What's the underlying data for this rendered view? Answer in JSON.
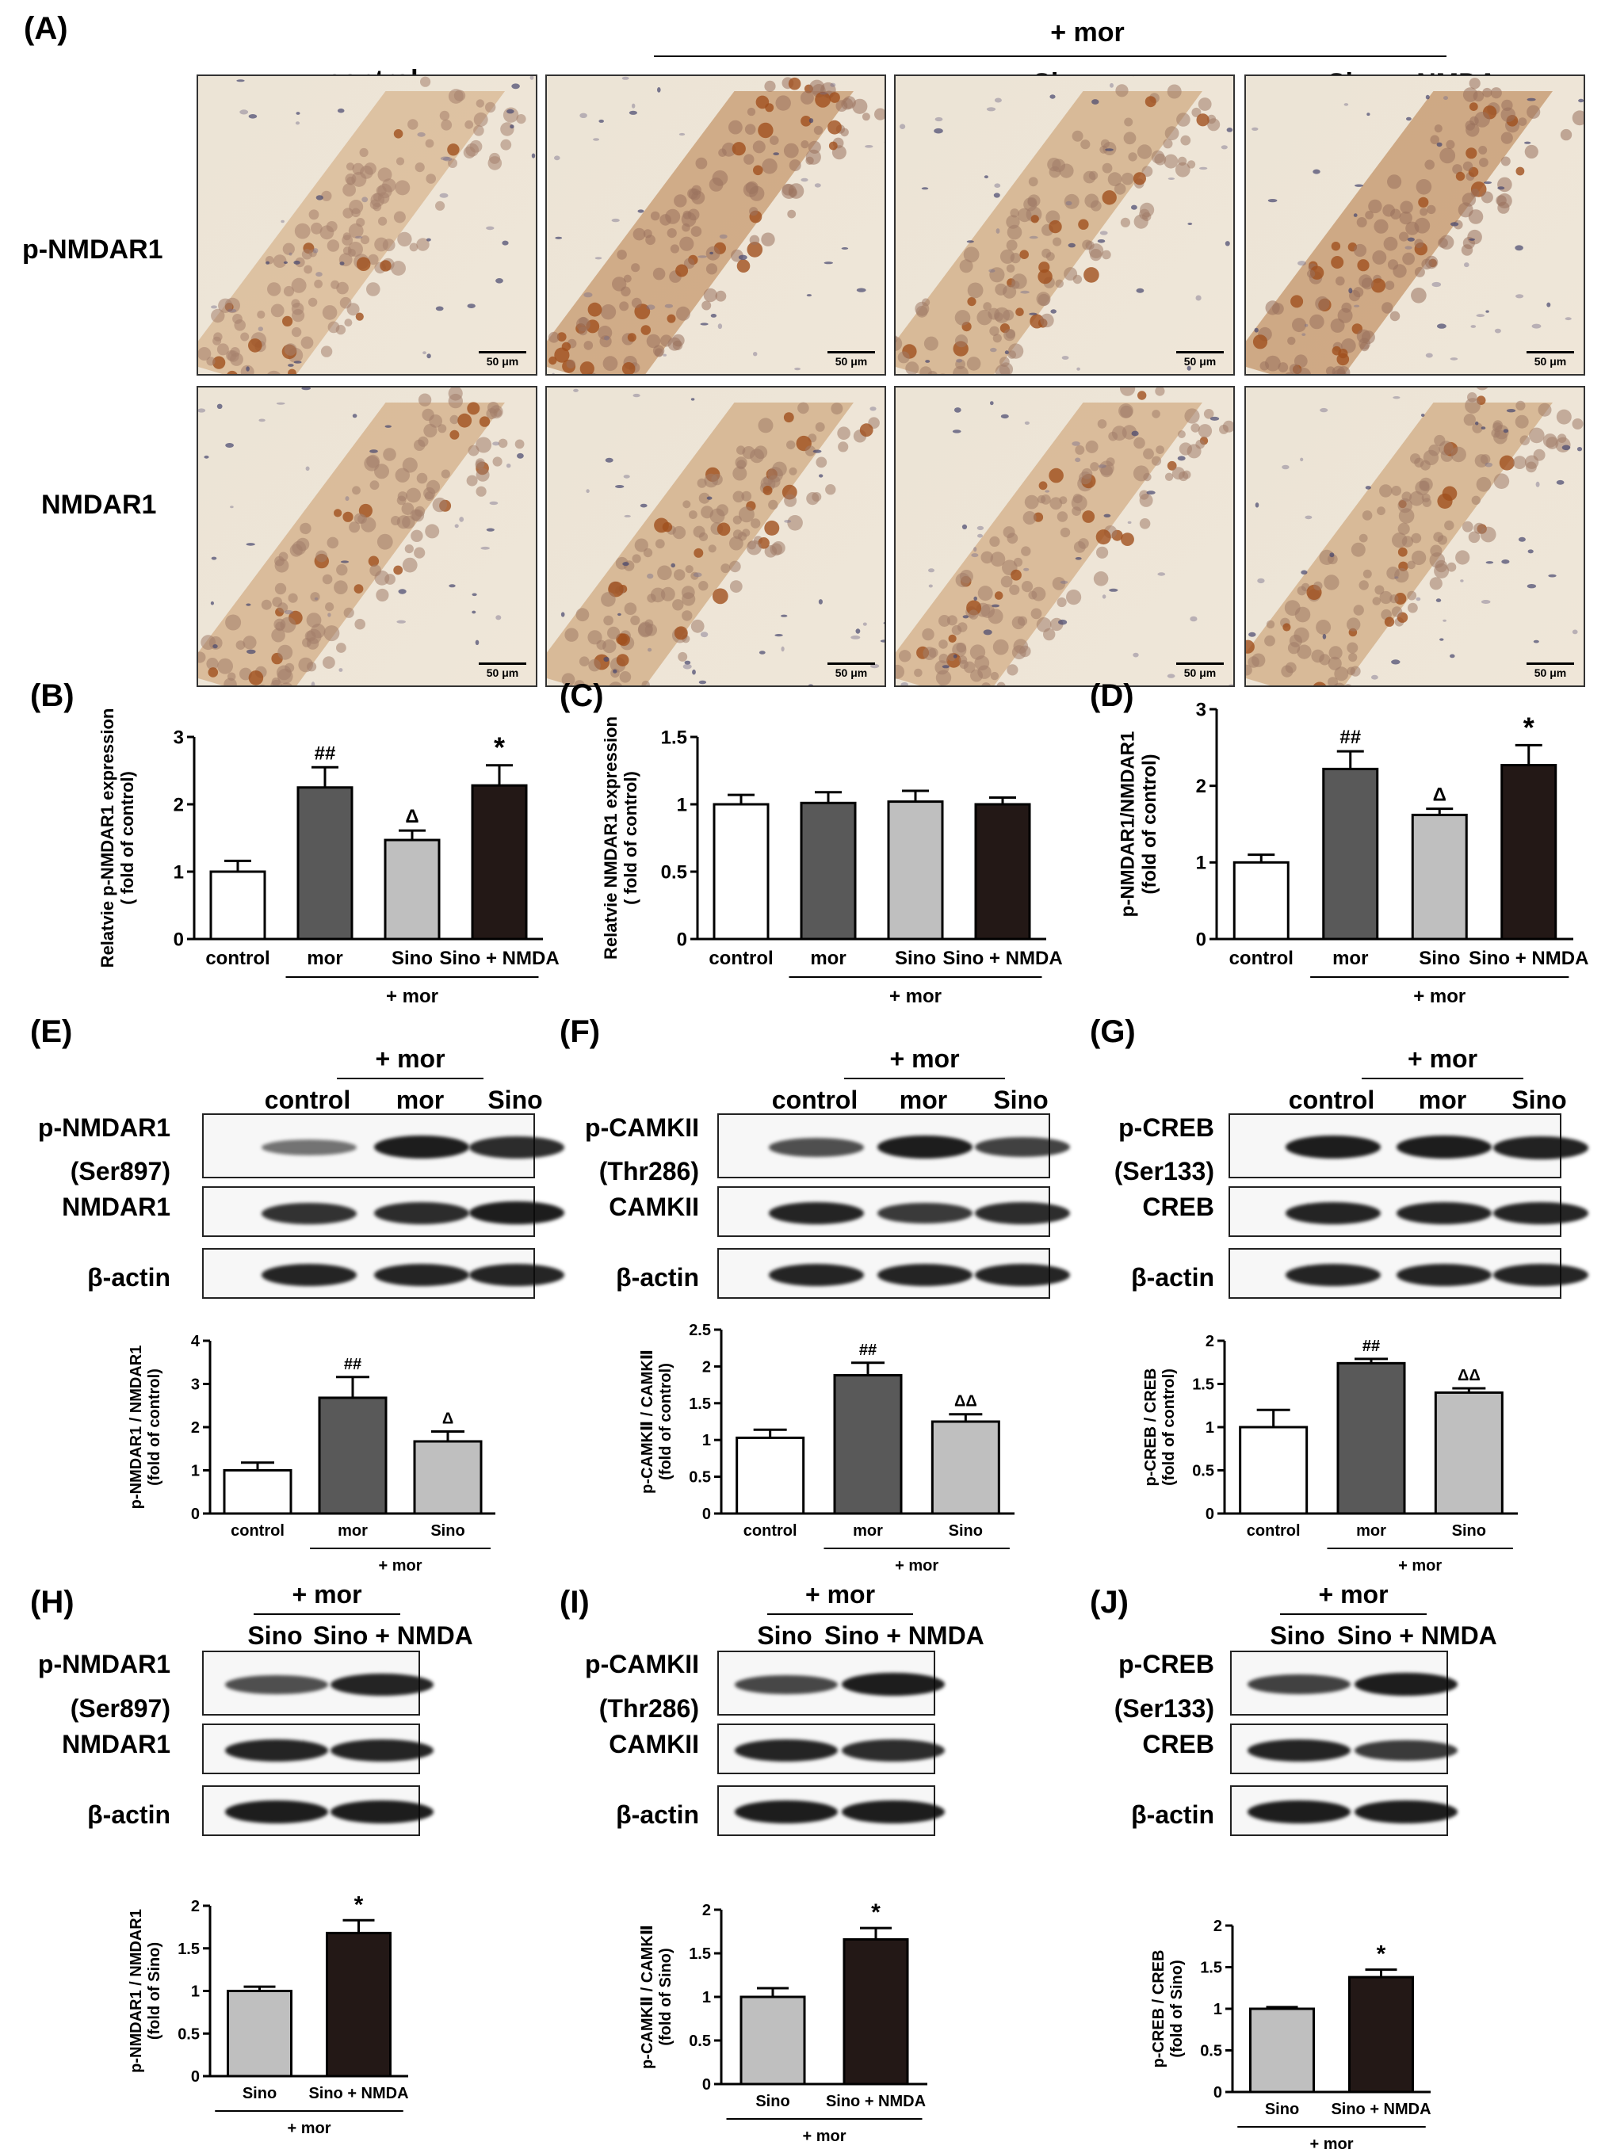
{
  "panel_letters": {
    "A": "(A)",
    "B": "(B)",
    "C": "(C)",
    "D": "(D)",
    "E": "(E)",
    "F": "(F)",
    "G": "(G)",
    "H": "(H)",
    "I": "(I)",
    "J": "(J)"
  },
  "panel_A": {
    "group_label": "+ mor",
    "col_headers": [
      "control",
      "mor",
      "Sino",
      "Sino + NMDA"
    ],
    "row_labels": [
      "p-NMDAR1",
      "NMDAR1"
    ],
    "scale_bar": "50 μm"
  },
  "blots": {
    "E": {
      "lanes": [
        "control",
        "mor",
        "Sino"
      ],
      "group_label": "+ mor",
      "rows": [
        "p-NMDAR1",
        "(Ser897)",
        "NMDAR1",
        "β-actin"
      ]
    },
    "F": {
      "lanes": [
        "control",
        "mor",
        "Sino"
      ],
      "group_label": "+ mor",
      "rows": [
        "p-CAMKII",
        "(Thr286)",
        "CAMKII",
        "β-actin"
      ]
    },
    "G": {
      "lanes": [
        "control",
        "mor",
        "Sino"
      ],
      "group_label": "+ mor",
      "rows": [
        "p-CREB",
        "(Ser133)",
        "CREB",
        "β-actin"
      ]
    },
    "H": {
      "lanes": [
        "Sino",
        "Sino + NMDA"
      ],
      "group_label": "+ mor",
      "rows": [
        "p-NMDAR1",
        "(Ser897)",
        "NMDAR1",
        "β-actin"
      ]
    },
    "I": {
      "lanes": [
        "Sino",
        "Sino + NMDA"
      ],
      "group_label": "+ mor",
      "rows": [
        "p-CAMKII",
        "(Thr286)",
        "CAMKII",
        "β-actin"
      ]
    },
    "J": {
      "lanes": [
        "Sino",
        "Sino + NMDA"
      ],
      "group_label": "+ mor",
      "rows": [
        "p-CREB",
        "(Ser133)",
        "CREB",
        "β-actin"
      ]
    }
  },
  "colors": {
    "control": "#ffffff",
    "mor": "#595959",
    "Sino": "#bfbfbf",
    "Sino + NMDA": "#231816"
  },
  "chart_data": [
    {
      "id": "B",
      "type": "bar",
      "categories": [
        "control",
        "mor",
        "Sino",
        "Sino + NMDA"
      ],
      "values": [
        1.0,
        2.25,
        1.47,
        2.28
      ],
      "errors": [
        0.16,
        0.3,
        0.14,
        0.3
      ],
      "annotations": [
        "",
        "##",
        "Δ",
        "*"
      ],
      "ylabel": "Relatvie p-NMDAR1 expression\n( fold of control)",
      "ylim": [
        0,
        3
      ],
      "yticks": [
        0,
        1,
        2,
        3
      ],
      "group_label": "+ mor",
      "group_span": [
        1,
        3
      ]
    },
    {
      "id": "C",
      "type": "bar",
      "categories": [
        "control",
        "mor",
        "Sino",
        "Sino + NMDA"
      ],
      "values": [
        1.0,
        1.01,
        1.02,
        1.0
      ],
      "errors": [
        0.07,
        0.08,
        0.08,
        0.05
      ],
      "annotations": [
        "",
        "",
        "",
        ""
      ],
      "ylabel": "Relatvie NMDAR1 expression\n( fold of control)",
      "ylim": [
        0,
        1.5
      ],
      "yticks": [
        0.0,
        0.5,
        1.0,
        1.5
      ],
      "group_label": "+ mor",
      "group_span": [
        1,
        3
      ]
    },
    {
      "id": "D",
      "type": "bar",
      "categories": [
        "control",
        "mor",
        "Sino",
        "Sino + NMDA"
      ],
      "values": [
        1.0,
        2.22,
        1.62,
        2.27
      ],
      "errors": [
        0.1,
        0.23,
        0.08,
        0.26
      ],
      "annotations": [
        "",
        "##",
        "Δ",
        "*"
      ],
      "ylabel": "p-NMDAR1/NMDAR1\n(fold of control)",
      "ylim": [
        0,
        3
      ],
      "yticks": [
        0,
        1,
        2,
        3
      ],
      "group_label": "+ mor",
      "group_span": [
        1,
        3
      ]
    },
    {
      "id": "E",
      "type": "bar",
      "categories": [
        "control",
        "mor",
        "Sino"
      ],
      "values": [
        1.0,
        2.68,
        1.67
      ],
      "errors": [
        0.18,
        0.48,
        0.23
      ],
      "annotations": [
        "",
        "##",
        "Δ"
      ],
      "ylabel": "p-NMDAR1 / NMDAR1\n(fold of control)",
      "ylim": [
        0,
        4
      ],
      "yticks": [
        0,
        1,
        2,
        3,
        4
      ],
      "group_label": "+ mor",
      "group_span": [
        1,
        2
      ]
    },
    {
      "id": "F",
      "type": "bar",
      "categories": [
        "control",
        "mor",
        "Sino"
      ],
      "values": [
        1.03,
        1.88,
        1.25
      ],
      "errors": [
        0.11,
        0.17,
        0.1
      ],
      "annotations": [
        "",
        "##",
        "ΔΔ"
      ],
      "ylabel": "p-CAMKⅡ / CAMKⅡ\n(fold of control)",
      "ylim": [
        0,
        2.5
      ],
      "yticks": [
        0.0,
        0.5,
        1.0,
        1.5,
        2.0,
        2.5
      ],
      "group_label": "+ mor",
      "group_span": [
        1,
        2
      ]
    },
    {
      "id": "G",
      "type": "bar",
      "categories": [
        "control",
        "mor",
        "Sino"
      ],
      "values": [
        1.0,
        1.74,
        1.4
      ],
      "errors": [
        0.2,
        0.05,
        0.05
      ],
      "annotations": [
        "",
        "##",
        "ΔΔ"
      ],
      "ylabel": "p-CREB / CREB\n(fold of control)",
      "ylim": [
        0,
        2.0
      ],
      "yticks": [
        0.0,
        0.5,
        1.0,
        1.5,
        2.0
      ],
      "group_label": "+ mor",
      "group_span": [
        1,
        2
      ]
    },
    {
      "id": "H",
      "type": "bar",
      "categories": [
        "Sino",
        "Sino + NMDA"
      ],
      "values": [
        1.0,
        1.68
      ],
      "errors": [
        0.05,
        0.15
      ],
      "annotations": [
        "",
        "*"
      ],
      "ylabel": "p-NMDAR1 / NMDAR1\n(fold of Sino)",
      "ylim": [
        0,
        2.0
      ],
      "yticks": [
        0.0,
        0.5,
        1.0,
        1.5,
        2.0
      ],
      "group_label": "+ mor",
      "group_span": [
        0,
        1
      ]
    },
    {
      "id": "I",
      "type": "bar",
      "categories": [
        "Sino",
        "Sino + NMDA"
      ],
      "values": [
        1.0,
        1.66
      ],
      "errors": [
        0.1,
        0.13
      ],
      "annotations": [
        "",
        "*"
      ],
      "ylabel": "p-CAMKⅡ / CAMKⅡ\n(fold of Sino)",
      "ylim": [
        0,
        2.0
      ],
      "yticks": [
        0.0,
        0.5,
        1.0,
        1.5,
        2.0
      ],
      "group_label": "+ mor",
      "group_span": [
        0,
        1
      ]
    },
    {
      "id": "J",
      "type": "bar",
      "categories": [
        "Sino",
        "Sino + NMDA"
      ],
      "values": [
        1.0,
        1.38
      ],
      "errors": [
        0.02,
        0.09
      ],
      "annotations": [
        "",
        "*"
      ],
      "ylabel": "p-CREB / CREB\n(fold of Sino)",
      "ylim": [
        0,
        2.0
      ],
      "yticks": [
        0.0,
        0.5,
        1.0,
        1.5,
        2.0
      ],
      "group_label": "+ mor",
      "group_span": [
        0,
        1
      ]
    }
  ]
}
